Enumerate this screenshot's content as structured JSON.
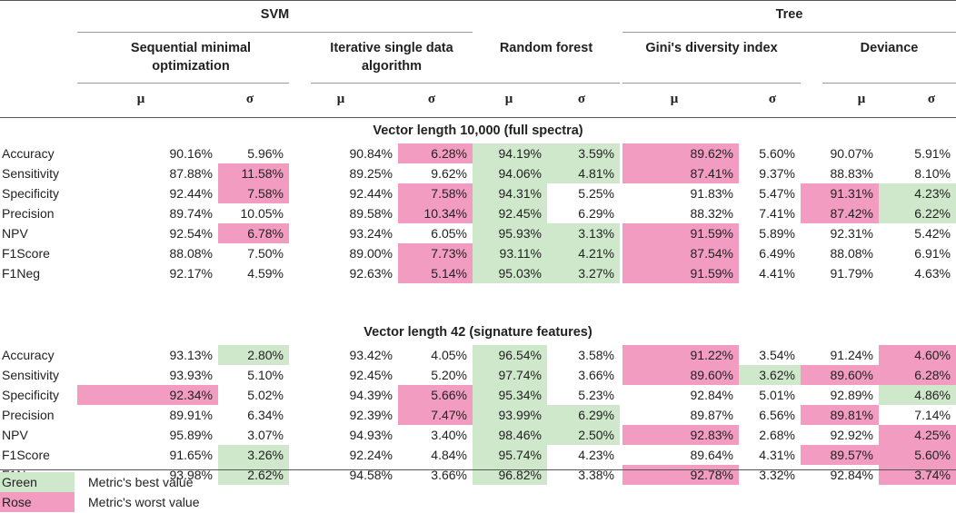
{
  "colors": {
    "green": "#cfe8cb",
    "rose": "#f29cc1"
  },
  "groups": {
    "svm": "SVM",
    "tree": "Tree"
  },
  "methods": [
    "Sequential minimal\noptimization",
    "Iterative single data\nalgorithm",
    "Random forest",
    "Gini's diversity index",
    "Deviance"
  ],
  "symbols": {
    "mu": "μ",
    "sigma": "σ"
  },
  "sections": [
    {
      "title": "Vector length 10,000 (full spectra)",
      "rows": [
        {
          "metric": "Accuracy",
          "values": [
            "90.16%",
            "5.96%",
            "90.84%",
            "6.28%",
            "94.19%",
            "3.59%",
            "89.62%",
            "5.60%",
            "90.07%",
            "5.91%"
          ],
          "colors": [
            "",
            "",
            "",
            "R",
            "G",
            "G",
            "R",
            "",
            "",
            ""
          ]
        },
        {
          "metric": "Sensitivity",
          "values": [
            "87.88%",
            "11.58%",
            "89.25%",
            "9.62%",
            "94.06%",
            "4.81%",
            "87.41%",
            "9.37%",
            "88.83%",
            "8.10%"
          ],
          "colors": [
            "",
            "R",
            "",
            "",
            "G",
            "G",
            "R",
            "",
            "",
            ""
          ]
        },
        {
          "metric": "Specificity",
          "values": [
            "92.44%",
            "7.58%",
            "92.44%",
            "7.58%",
            "94.31%",
            "5.25%",
            "91.83%",
            "5.47%",
            "91.31%",
            "4.23%"
          ],
          "colors": [
            "",
            "R",
            "",
            "R",
            "G",
            "",
            "",
            "",
            "R",
            "G"
          ]
        },
        {
          "metric": "Precision",
          "values": [
            "89.74%",
            "10.05%",
            "89.58%",
            "10.34%",
            "92.45%",
            "6.29%",
            "88.32%",
            "7.41%",
            "87.42%",
            "6.22%"
          ],
          "colors": [
            "",
            "",
            "",
            "R",
            "G",
            "",
            "",
            "",
            "R",
            "G"
          ]
        },
        {
          "metric": "NPV",
          "values": [
            "92.54%",
            "6.78%",
            "93.24%",
            "6.05%",
            "95.93%",
            "3.13%",
            "91.59%",
            "5.89%",
            "92.31%",
            "5.42%"
          ],
          "colors": [
            "",
            "R",
            "",
            "",
            "G",
            "G",
            "R",
            "",
            "",
            ""
          ]
        },
        {
          "metric": "F1Score",
          "values": [
            "88.08%",
            "7.50%",
            "89.00%",
            "7.73%",
            "93.11%",
            "4.21%",
            "87.54%",
            "6.49%",
            "88.08%",
            "6.91%"
          ],
          "colors": [
            "",
            "",
            "",
            "R",
            "G",
            "G",
            "R",
            "",
            "",
            ""
          ]
        },
        {
          "metric": "F1Neg",
          "values": [
            "92.17%",
            "4.59%",
            "92.63%",
            "5.14%",
            "95.03%",
            "3.27%",
            "91.59%",
            "4.41%",
            "91.79%",
            "4.63%"
          ],
          "colors": [
            "",
            "",
            "",
            "R",
            "G",
            "G",
            "R",
            "",
            "",
            ""
          ]
        }
      ]
    },
    {
      "title": "Vector length 42 (signature features)",
      "rows": [
        {
          "metric": "Accuracy",
          "values": [
            "93.13%",
            "2.80%",
            "93.42%",
            "4.05%",
            "96.54%",
            "3.58%",
            "91.22%",
            "3.54%",
            "91.24%",
            "4.60%"
          ],
          "colors": [
            "",
            "G",
            "",
            "",
            "G",
            "",
            "R",
            "",
            "",
            "R"
          ]
        },
        {
          "metric": "Sensitivity",
          "values": [
            "93.93%",
            "5.10%",
            "92.45%",
            "5.20%",
            "97.74%",
            "3.66%",
            "89.60%",
            "3.62%",
            "89.60%",
            "6.28%"
          ],
          "colors": [
            "",
            "",
            "",
            "",
            "G",
            "",
            "R",
            "G",
            "R",
            "R"
          ]
        },
        {
          "metric": "Specificity",
          "values": [
            "92.34%",
            "5.02%",
            "94.39%",
            "5.66%",
            "95.34%",
            "5.23%",
            "92.84%",
            "5.01%",
            "92.89%",
            "4.86%"
          ],
          "colors": [
            "R",
            "",
            "",
            "R",
            "G",
            "",
            "",
            "",
            "",
            "G"
          ]
        },
        {
          "metric": "Precision",
          "values": [
            "89.91%",
            "6.34%",
            "92.39%",
            "7.47%",
            "93.99%",
            "6.29%",
            "89.87%",
            "6.56%",
            "89.81%",
            "7.14%"
          ],
          "colors": [
            "",
            "",
            "",
            "R",
            "G",
            "G",
            "",
            "",
            "R",
            ""
          ]
        },
        {
          "metric": "NPV",
          "values": [
            "95.89%",
            "3.07%",
            "94.93%",
            "3.40%",
            "98.46%",
            "2.50%",
            "92.83%",
            "2.68%",
            "92.92%",
            "4.25%"
          ],
          "colors": [
            "",
            "",
            "",
            "",
            "G",
            "G",
            "R",
            "",
            "",
            "R"
          ]
        },
        {
          "metric": "F1Score",
          "values": [
            "91.65%",
            "3.26%",
            "92.24%",
            "4.84%",
            "95.74%",
            "4.23%",
            "89.64%",
            "4.31%",
            "89.57%",
            "5.60%"
          ],
          "colors": [
            "",
            "G",
            "",
            "",
            "G",
            "",
            "",
            "",
            "R",
            "R"
          ]
        },
        {
          "metric": "F1Neg",
          "values": [
            "93.98%",
            "2.62%",
            "94.58%",
            "3.66%",
            "96.82%",
            "3.38%",
            "92.78%",
            "3.32%",
            "92.84%",
            "3.74%"
          ],
          "colors": [
            "",
            "G",
            "",
            "",
            "G",
            "",
            "R",
            "",
            "",
            "R"
          ]
        }
      ]
    }
  ],
  "legend": [
    {
      "label": "Green",
      "description": "Metric's best value",
      "color": "G"
    },
    {
      "label": "Rose",
      "description": "Metric's worst value",
      "color": "R"
    }
  ]
}
